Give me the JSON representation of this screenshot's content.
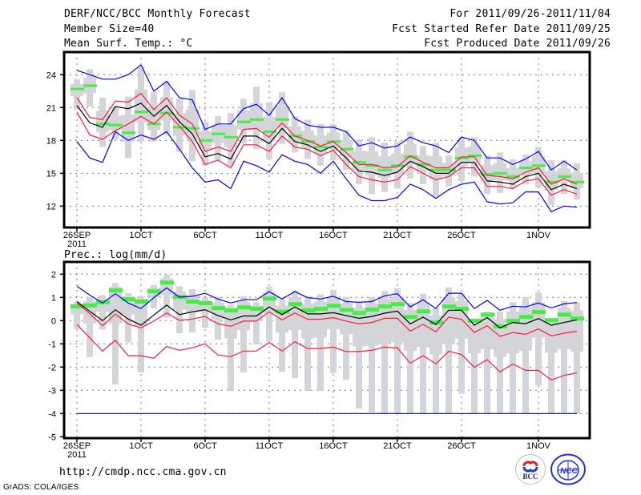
{
  "header": {
    "title": "DERF/NCC/BCC Monthly Forecast",
    "member_size": "Member Size=40",
    "variable": "Mean Surf. Temp.: °C",
    "period": "For 2011/09/26-2011/11/04",
    "fcst_started": "Fcst Started Refer Date 2011/09/25",
    "fcst_produced": "Fcst Produced Date 2011/09/26"
  },
  "footer": {
    "url": "http://cmdp.ncc.cma.gov.cn",
    "grads": "GrADS: COLA/IGES",
    "logo_bcc": "BCC",
    "logo_ncc": "NCC"
  },
  "colors": {
    "mean": "#000000",
    "red": "#ff1a3c",
    "blue": "#0000ff",
    "green": "#44ee44",
    "box": "#d4d5d9",
    "grid": "#777777"
  },
  "chart_data": [
    {
      "type": "line",
      "title": "Mean Surf. Temp.: °C",
      "x_day0": "26SEP 2011",
      "xticks": [
        {
          "day": 0,
          "label": "26SEP",
          "sub": "2011"
        },
        {
          "day": 5,
          "label": "1OCT"
        },
        {
          "day": 10,
          "label": "6OCT"
        },
        {
          "day": 15,
          "label": "11OCT"
        },
        {
          "day": 20,
          "label": "16OCT"
        },
        {
          "day": 25,
          "label": "21OCT"
        },
        {
          "day": 30,
          "label": "26OCT"
        },
        {
          "day": 36,
          "label": "1NOV"
        }
      ],
      "yticks": [
        12,
        15,
        18,
        21,
        24
      ],
      "ylim": [
        10.2,
        26.1
      ],
      "grid": true,
      "series": [
        {
          "name": "mean",
          "color": "#000000",
          "values": [
            21.2,
            19.6,
            19.2,
            21.1,
            20.9,
            21.4,
            20.2,
            21.2,
            19.7,
            18.6,
            16.5,
            16.8,
            16.3,
            18.4,
            18.4,
            17.7,
            19.1,
            17.9,
            17.6,
            17.0,
            17.5,
            16.4,
            15.2,
            15.1,
            14.8,
            15.1,
            16.1,
            15.6,
            15.0,
            15.0,
            16.0,
            16.0,
            14.3,
            14.2,
            14.0,
            14.7,
            15.0,
            13.5,
            14.0,
            13.6
          ]
        },
        {
          "name": "upper-red",
          "color": "#ff1a3c",
          "values": [
            21.9,
            20.1,
            19.9,
            21.6,
            21.5,
            22.3,
            20.8,
            21.9,
            20.3,
            19.5,
            17.0,
            17.4,
            17.0,
            19.0,
            19.1,
            18.3,
            19.6,
            18.4,
            18.0,
            17.5,
            17.9,
            16.9,
            15.8,
            15.8,
            15.5,
            15.6,
            16.6,
            16.0,
            15.5,
            15.5,
            16.5,
            16.5,
            14.8,
            14.7,
            14.5,
            15.1,
            15.5,
            14.0,
            14.5,
            14.0
          ]
        },
        {
          "name": "lower-red",
          "color": "#ff1a3c",
          "values": [
            20.6,
            18.5,
            18.1,
            18.9,
            19.5,
            20.2,
            19.5,
            20.6,
            19.3,
            17.9,
            15.8,
            16.2,
            15.5,
            17.6,
            17.6,
            17.0,
            18.4,
            17.4,
            17.2,
            16.6,
            17.1,
            15.8,
            14.7,
            14.4,
            14.2,
            14.4,
            15.6,
            15.0,
            14.4,
            14.7,
            15.5,
            15.5,
            13.8,
            13.8,
            13.6,
            14.3,
            14.5,
            13.0,
            13.5,
            13.1
          ]
        },
        {
          "name": "upper-blue",
          "color": "#0000ff",
          "values": [
            24.4,
            24.0,
            23.6,
            23.6,
            24.0,
            24.9,
            22.5,
            23.4,
            21.9,
            21.7,
            19.0,
            19.5,
            19.5,
            20.9,
            21.3,
            20.3,
            21.9,
            20.0,
            19.4,
            19.2,
            19.2,
            18.8,
            17.5,
            17.8,
            17.3,
            17.5,
            18.3,
            17.8,
            17.5,
            16.9,
            18.3,
            18.0,
            16.4,
            16.4,
            15.8,
            16.3,
            17.0,
            15.3,
            16.1,
            15.3
          ]
        },
        {
          "name": "lower-blue",
          "color": "#0000ff",
          "values": [
            17.9,
            16.4,
            16.0,
            18.8,
            18.0,
            18.5,
            18.1,
            18.8,
            17.2,
            15.5,
            14.2,
            14.4,
            13.6,
            16.1,
            15.7,
            15.1,
            16.7,
            16.1,
            15.8,
            15.0,
            16.1,
            14.5,
            13.0,
            12.5,
            12.5,
            12.8,
            14.0,
            13.5,
            12.7,
            13.5,
            14.0,
            14.2,
            12.4,
            12.2,
            12.3,
            13.3,
            13.3,
            11.5,
            12.0,
            11.9
          ]
        }
      ],
      "green": [
        22.7,
        23.0,
        19.5,
        19.4,
        18.7,
        20.6,
        19.5,
        20.5,
        19.2,
        19.1,
        18.0,
        18.6,
        18.3,
        19.7,
        19.9,
        18.8,
        19.9,
        18.4,
        17.9,
        17.4,
        17.9,
        17.2,
        16.0,
        15.7,
        15.3,
        15.7,
        16.5,
        15.8,
        15.3,
        15.3,
        16.4,
        16.6,
        14.9,
        15.0,
        14.7,
        15.5,
        15.7,
        14.2,
        14.7,
        14.2
      ],
      "whisker_max": [
        23.6,
        24.5,
        21.9,
        21.1,
        22.0,
        24.7,
        22.4,
        23.4,
        21.8,
        22.6,
        19.7,
        20.2,
        20.5,
        21.8,
        22.9,
        21.5,
        22.4,
        20.2,
        19.9,
        19.5,
        19.5,
        18.9,
        18.1,
        18.3,
        17.8,
        17.9,
        18.8,
        17.5,
        17.8,
        16.6,
        18.3,
        18.3,
        16.6,
        16.9,
        16.3,
        16.7,
        17.4,
        16.2,
        16.2,
        15.9
      ],
      "whisker_min": [
        20.8,
        21.1,
        17.4,
        18.1,
        16.4,
        17.9,
        17.9,
        18.5,
        17.0,
        16.1,
        15.7,
        16.2,
        15.6,
        17.7,
        17.2,
        16.3,
        17.7,
        16.9,
        16.3,
        15.7,
        16.2,
        15.3,
        14.0,
        13.1,
        13.3,
        13.6,
        14.5,
        14.0,
        12.9,
        13.8,
        14.3,
        14.7,
        13.1,
        13.2,
        13.6,
        14.0,
        13.7,
        12.1,
        13.1,
        12.6
      ]
    },
    {
      "type": "line",
      "title": "Prec.: log(mm/d)",
      "x_day0": "26SEP 2011",
      "xticks": [
        {
          "day": 0,
          "label": "26SEP",
          "sub": "2011"
        },
        {
          "day": 5,
          "label": "1OCT"
        },
        {
          "day": 10,
          "label": "6OCT"
        },
        {
          "day": 15,
          "label": "11OCT"
        },
        {
          "day": 20,
          "label": "16OCT"
        },
        {
          "day": 25,
          "label": "21OCT"
        },
        {
          "day": 30,
          "label": "26OCT"
        },
        {
          "day": 36,
          "label": "1NOV"
        }
      ],
      "yticks": [
        -5,
        -4,
        -3,
        -2,
        -1,
        0,
        1,
        2
      ],
      "ylim": [
        -5.05,
        2.5
      ],
      "grid": true,
      "series": [
        {
          "name": "mean",
          "color": "#000000",
          "values": [
            0.82,
            0.4,
            0.0,
            0.47,
            0.07,
            -0.2,
            0.24,
            0.67,
            0.26,
            0.38,
            0.47,
            0.22,
            0.03,
            0.2,
            0.2,
            0.59,
            0.26,
            0.59,
            0.29,
            0.29,
            0.34,
            0.22,
            0.1,
            0.18,
            0.32,
            0.41,
            -0.14,
            0.15,
            -0.17,
            0.45,
            0.45,
            -0.2,
            0.13,
            -0.31,
            -0.08,
            -0.13,
            0.09,
            -0.2,
            -0.08,
            0.03
          ]
        },
        {
          "name": "upper-red",
          "color": "#ff1a3c",
          "values": [
            0.76,
            0.3,
            -0.22,
            0.28,
            -0.14,
            -0.31,
            -0.02,
            0.33,
            0.01,
            0.07,
            0.18,
            -0.14,
            -0.24,
            -0.02,
            -0.02,
            0.38,
            0.03,
            0.33,
            0.06,
            0.06,
            0.13,
            -0.02,
            -0.14,
            -0.08,
            0.1,
            0.1,
            -0.45,
            -0.16,
            -0.48,
            0.15,
            0.06,
            -0.51,
            -0.22,
            -0.68,
            -0.51,
            -0.59,
            -0.36,
            -0.66,
            -0.54,
            -0.46
          ]
        },
        {
          "name": "lower-red",
          "color": "#ff1a3c",
          "values": [
            -0.16,
            -0.74,
            -1.31,
            -0.85,
            -1.51,
            -1.51,
            -1.62,
            -1.11,
            -1.28,
            -1.17,
            -1.0,
            -1.48,
            -1.55,
            -1.31,
            -1.31,
            -0.94,
            -1.31,
            -0.91,
            -1.2,
            -1.2,
            -1.14,
            -1.33,
            -1.33,
            -1.28,
            -1.14,
            -1.18,
            -1.83,
            -1.51,
            -1.86,
            -1.32,
            -1.46,
            -2.01,
            -1.68,
            -2.21,
            -1.87,
            -2.14,
            -2.14,
            -2.55,
            -2.36,
            -2.25
          ]
        },
        {
          "name": "upper-blue",
          "color": "#0000ff",
          "values": [
            1.48,
            1.1,
            0.76,
            1.16,
            0.76,
            0.52,
            0.99,
            1.41,
            1.01,
            1.05,
            1.18,
            0.93,
            0.76,
            0.9,
            0.9,
            1.25,
            0.93,
            1.25,
            0.99,
            0.93,
            1.05,
            0.82,
            0.79,
            0.82,
            1.07,
            1.16,
            0.59,
            0.9,
            0.52,
            1.18,
            1.18,
            0.52,
            0.87,
            0.45,
            0.62,
            0.59,
            0.76,
            0.55,
            0.72,
            0.78
          ]
        },
        {
          "name": "lower-blue",
          "color": "#0000ff",
          "values": [
            -4,
            -4,
            -4,
            -4,
            -4,
            -4,
            -4,
            -4,
            -4,
            -4,
            -4,
            -4,
            -4,
            -4,
            -4,
            -4,
            -4,
            -4,
            -4,
            -4,
            -4,
            -4,
            -4,
            -4,
            -4,
            -4,
            -4,
            -4,
            -4,
            -4,
            -4,
            -4,
            -4,
            -4,
            -4,
            -4,
            -4,
            -4,
            -4,
            -4
          ]
        }
      ],
      "green": [
        0.61,
        0.66,
        0.79,
        1.3,
        0.92,
        0.82,
        1.26,
        1.64,
        1.02,
        0.82,
        0.75,
        0.54,
        0.44,
        0.57,
        0.51,
        0.95,
        0.39,
        0.71,
        0.44,
        0.51,
        0.64,
        0.46,
        0.33,
        0.47,
        0.61,
        0.71,
        0.16,
        0.4,
        -0.08,
        0.61,
        0.51,
        -0.01,
        0.26,
        -0.25,
        -0.01,
        0.16,
        0.37,
        0.02,
        0.26,
        0.09
      ],
      "whisker_max": [
        0.82,
        1.0,
        1.1,
        1.62,
        1.18,
        1.05,
        1.53,
        1.99,
        1.48,
        1.36,
        0.99,
        1.02,
        0.68,
        1.05,
        0.79,
        1.47,
        0.9,
        1.3,
        1.02,
        1.13,
        1.32,
        1.02,
        0.79,
        1.02,
        1.28,
        1.39,
        0.76,
        1.16,
        0.53,
        1.43,
        1.16,
        0.05,
        0.39,
        0.39,
        0.79,
        1.01,
        1.22,
        0.07,
        0.84,
        0.79
      ],
      "whisker_min": [
        -0.36,
        -1.57,
        -0.39,
        -2.75,
        -0.94,
        -2.23,
        0.53,
        0.13,
        -0.54,
        -0.51,
        -0.31,
        -0.82,
        -3.03,
        -2.23,
        -1.02,
        -0.89,
        -2.2,
        -2.48,
        -3.03,
        -3.03,
        -2.26,
        -2.54,
        -3.78,
        -3.95,
        -3.99,
        -3.99,
        -4.0,
        -4.0,
        -4.0,
        -4.0,
        -3.15,
        -4.0,
        -4.0,
        -4.0,
        -4.0,
        -4.0,
        -2.78,
        -4.0,
        -4.0,
        -4.0
      ]
    }
  ]
}
